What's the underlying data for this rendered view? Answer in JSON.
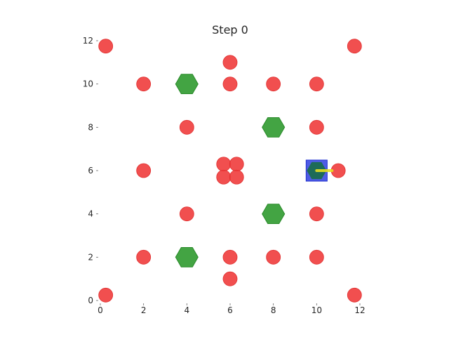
{
  "title": "Step 0",
  "colors": {
    "background": "#ffffff",
    "obstacle": "#f03c3c",
    "goal": "#2f9a2f",
    "agent_box": "#3040e0",
    "agent_body": "#1a6b50",
    "heading": "#e8e020"
  },
  "chart_data": {
    "type": "scatter",
    "xlim": [
      0,
      12
    ],
    "ylim": [
      0,
      12
    ],
    "grid": false,
    "x_ticks": [
      0,
      2,
      4,
      6,
      8,
      10,
      12
    ],
    "y_ticks": [
      0,
      2,
      4,
      6,
      8,
      10,
      12
    ],
    "x_tick_labels": [
      "0",
      "2",
      "4",
      "6",
      "8",
      "10",
      "12"
    ],
    "y_tick_labels": [
      "0",
      "2",
      "4",
      "6",
      "8",
      "10",
      "12"
    ],
    "obstacles": [
      [
        0.25,
        11.75
      ],
      [
        11.75,
        11.75
      ],
      [
        6,
        11
      ],
      [
        2,
        10
      ],
      [
        6,
        10
      ],
      [
        8,
        10
      ],
      [
        10,
        10
      ],
      [
        4,
        8
      ],
      [
        10,
        8
      ],
      [
        2,
        6
      ],
      [
        5.7,
        6.3
      ],
      [
        6.3,
        6.3
      ],
      [
        5.7,
        5.7
      ],
      [
        6.3,
        5.7
      ],
      [
        11,
        6
      ],
      [
        4,
        4
      ],
      [
        10,
        4
      ],
      [
        2,
        2
      ],
      [
        6,
        2
      ],
      [
        8,
        2
      ],
      [
        10,
        2
      ],
      [
        6,
        1
      ],
      [
        0.25,
        0.25
      ],
      [
        11.75,
        0.25
      ]
    ],
    "goals": [
      [
        4,
        10
      ],
      [
        8,
        8
      ],
      [
        8,
        4
      ],
      [
        4,
        2
      ]
    ],
    "agent": {
      "x": 10,
      "y": 6,
      "heading_deg": 0
    }
  }
}
